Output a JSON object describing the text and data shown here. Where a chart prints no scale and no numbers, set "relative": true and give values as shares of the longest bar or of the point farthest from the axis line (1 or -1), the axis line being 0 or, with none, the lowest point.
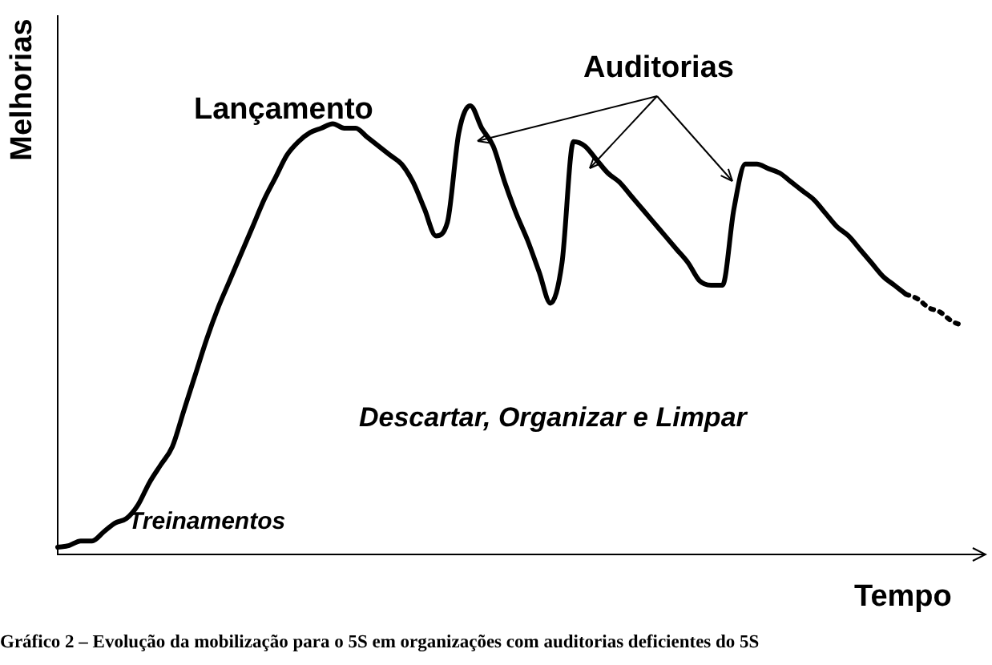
{
  "chart_data": {
    "type": "line",
    "relative": true,
    "xlabel": "Tempo",
    "ylabel": "Melhorias",
    "legend": false,
    "marker": "none",
    "grid": false,
    "annotations": [
      "Lançamento",
      "Auditorias",
      "Descartar, Organizar e Limpar",
      "Treinamentos",
      "Gráfico 2 – Evolução da mobilização para o 5S em organizações com auditorias deficientes do 5S"
    ],
    "categories": [
      null,
      null,
      null,
      null,
      null,
      null,
      null,
      null,
      null,
      null,
      null,
      null,
      null,
      null,
      null,
      null,
      null,
      null,
      null,
      null,
      null,
      null,
      null,
      null,
      null,
      null,
      null,
      null,
      null,
      null,
      null,
      null,
      null,
      null,
      null,
      null,
      null,
      null,
      null,
      null,
      null,
      null,
      null,
      null,
      null,
      null,
      null,
      null,
      null,
      null,
      null,
      null,
      null,
      null,
      null,
      null,
      null,
      null,
      null,
      null,
      null,
      null,
      null,
      null,
      null,
      null,
      null,
      null,
      null,
      null,
      null,
      null,
      null,
      null,
      null,
      null,
      null,
      null,
      null,
      null
    ],
    "series": [
      {
        "color": "#000000",
        "line_style": "solid",
        "values": [
          0.016,
          0.02,
          0.03,
          0.03,
          0.05,
          0.07,
          0.08,
          0.11,
          0.16,
          0.2,
          0.24,
          0.32,
          0.4,
          0.48,
          0.55,
          0.61,
          0.67,
          0.73,
          0.79,
          0.84,
          0.89,
          0.92,
          0.94,
          0.95,
          0.96,
          0.95,
          0.95,
          0.93,
          0.91,
          0.89,
          0.87,
          0.83,
          0.77,
          0.71,
          0.74,
          0.94,
          1,
          0.95,
          0.91,
          0.83,
          0.76,
          0.7,
          0.63,
          0.56,
          0.65,
          0.92,
          0.91,
          0.88,
          0.85,
          0.83,
          0.8,
          0.77,
          0.74,
          0.71,
          0.68,
          0.65,
          0.61,
          0.6,
          0.6,
          0.77,
          0.87,
          0.87,
          0.86,
          0.85,
          0.83,
          0.81,
          0.79,
          0.76,
          0.73,
          0.71,
          0.68,
          0.65,
          0.62,
          0.6,
          0.58,
          null,
          null,
          null,
          null,
          null
        ]
      },
      {
        "color": "#000000",
        "line_style": "dotted",
        "values": [
          null,
          null,
          null,
          null,
          null,
          null,
          null,
          null,
          null,
          null,
          null,
          null,
          null,
          null,
          null,
          null,
          null,
          null,
          null,
          null,
          null,
          null,
          null,
          null,
          null,
          null,
          null,
          null,
          null,
          null,
          null,
          null,
          null,
          null,
          null,
          null,
          null,
          null,
          null,
          null,
          null,
          null,
          null,
          null,
          null,
          null,
          null,
          null,
          null,
          null,
          null,
          null,
          null,
          null,
          null,
          null,
          null,
          null,
          null,
          null,
          null,
          null,
          null,
          null,
          null,
          null,
          null,
          null,
          null,
          null,
          null,
          null,
          null,
          null,
          0.58,
          0.57,
          0.55,
          0.54,
          0.52,
          0.51
        ]
      }
    ]
  }
}
